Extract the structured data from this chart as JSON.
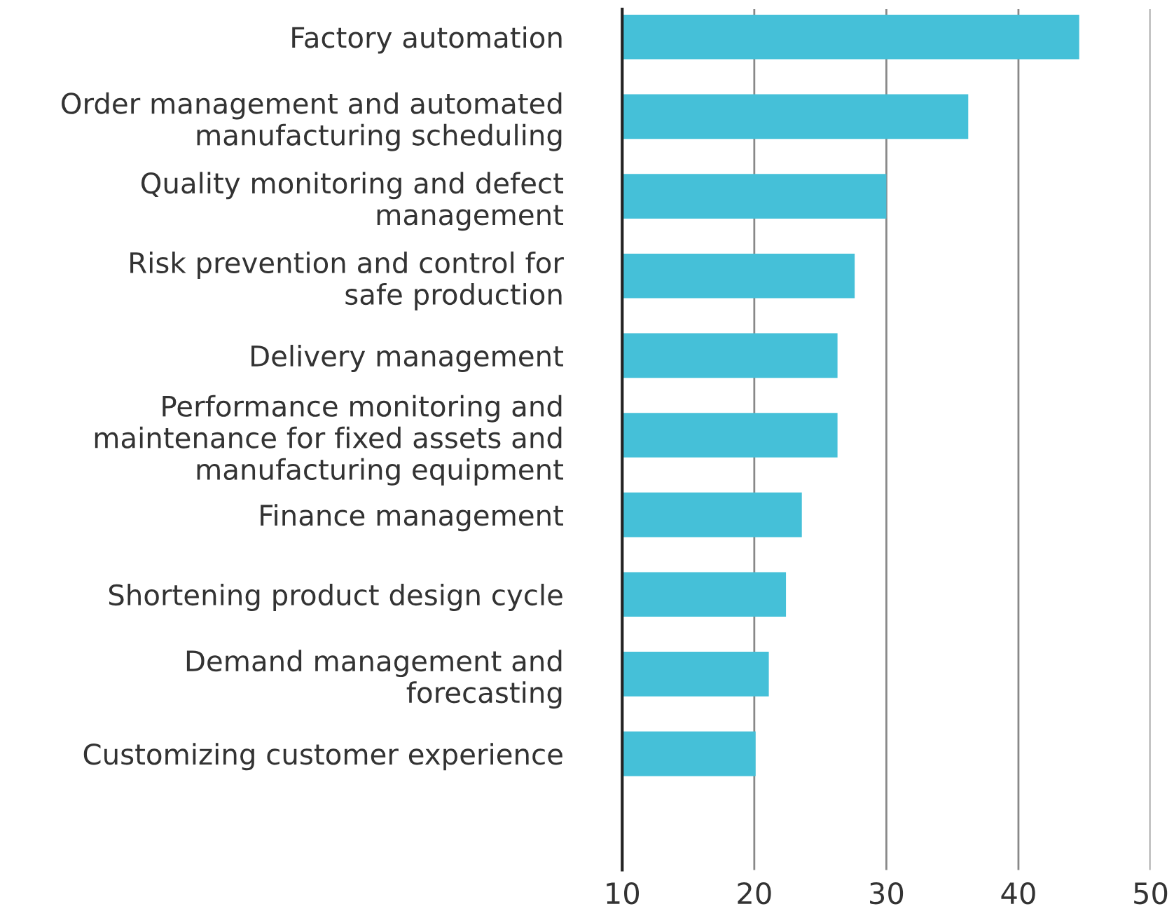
{
  "chart_data": {
    "type": "bar",
    "orientation": "horizontal",
    "categories": [
      "Factory automation",
      "Order management and automated\nmanufacturing scheduling",
      "Quality monitoring and defect\nmanagement",
      "Risk prevention and control for\nsafe production",
      "Delivery management",
      "Performance monitoring and\nmaintenance for fixed assets and\nmanufacturing equipment",
      "Finance management",
      "Shortening product design cycle",
      "Demand management and\nforecasting",
      "Customizing customer experience"
    ],
    "values": [
      44.6,
      36.2,
      30.0,
      27.6,
      26.3,
      26.3,
      23.6,
      22.4,
      21.1,
      20.1
    ],
    "color": "#45c0d8",
    "xlim": [
      10,
      50
    ],
    "xticks": [
      10,
      20,
      30,
      40,
      50
    ],
    "grid": "x"
  }
}
